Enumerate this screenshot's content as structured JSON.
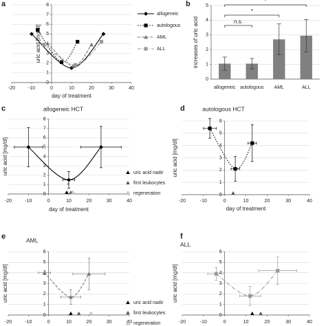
{
  "chart_data": [
    {
      "type": "line",
      "label": "a",
      "xlabel": "day of treatment",
      "ylabel": "uric acid [mg/dl]",
      "xlim": [
        -20,
        40
      ],
      "xticks": [
        -20,
        -10,
        0,
        10,
        20,
        30,
        40
      ],
      "ylim": [
        0,
        8
      ],
      "yticks": [
        0,
        1,
        2,
        3,
        4,
        5,
        6,
        7,
        8
      ],
      "grid": true,
      "legend": "right",
      "series": [
        {
          "name": "allogeneic",
          "color": "#000000",
          "line_style": "solid",
          "marker": "diamond",
          "x": [
            -10,
            10,
            26
          ],
          "values": [
            5,
            1.5,
            5
          ]
        },
        {
          "name": "autologous",
          "color": "#000000",
          "line_style": "dotted",
          "marker": "square",
          "x": [
            -7,
            5,
            13
          ],
          "values": [
            5.4,
            2.1,
            4.2
          ]
        },
        {
          "name": "AML",
          "color": "#777777",
          "line_style": "dashed",
          "marker": "triangle",
          "x": [
            -2,
            11,
            20
          ],
          "values": [
            4.0,
            1.7,
            3.9
          ]
        },
        {
          "name": "ALL",
          "color": "#999999",
          "line_style": "dashdot",
          "marker": "square",
          "x": [
            -4,
            12,
            25
          ],
          "values": [
            3.9,
            1.8,
            4.2
          ]
        }
      ]
    },
    {
      "type": "bar",
      "label": "b",
      "ylabel": "increases of uric acid",
      "categories": [
        "allogeneic",
        "autologous",
        "AML",
        "ALL"
      ],
      "values": [
        1.05,
        1.05,
        2.7,
        2.95
      ],
      "errors": [
        0.45,
        0.35,
        1.05,
        1.1
      ],
      "color": "#808080",
      "ylim": [
        0,
        5
      ],
      "yticks": [
        0,
        1,
        2,
        3,
        4,
        5
      ],
      "grid": true,
      "annotations": [
        {
          "text": "n.s.",
          "from": "allogeneic",
          "to": "autologous"
        },
        {
          "text": "*",
          "from": "allogeneic",
          "to": "AML"
        },
        {
          "text": "*",
          "from": "allogeneic",
          "to": "ALL"
        }
      ]
    },
    {
      "type": "line",
      "label": "c",
      "title": "allogeneic HCT",
      "xlabel": "day of treatment",
      "ylabel": "uric acid [mg/dl]",
      "xlim": [
        -20,
        40
      ],
      "xticks": [
        -20,
        -10,
        0,
        10,
        20,
        30,
        40
      ],
      "ylim": [
        0,
        8
      ],
      "yticks": [
        0,
        1,
        2,
        3,
        4,
        5,
        6,
        7,
        8
      ],
      "grid": true,
      "legend": "right",
      "series": [
        {
          "color": "#000000",
          "line_style": "solid",
          "marker": "diamond",
          "x": [
            -10,
            10,
            26
          ],
          "values": [
            5,
            1.5,
            5
          ],
          "xerr": [
            7,
            3,
            10
          ],
          "yerr": [
            2.1,
            0.9,
            2.2
          ]
        }
      ],
      "events": [
        {
          "name": "uric acid nadir",
          "x": 9,
          "color": "#000000"
        },
        {
          "name": "first leukocytes",
          "x": 11,
          "color": "#555555"
        },
        {
          "name": "regeneration",
          "x": 12,
          "color": "#cccccc"
        }
      ],
      "annotations": [
        {
          "text": "*"
        }
      ]
    },
    {
      "type": "line",
      "label": "d",
      "title": "autologous HCT",
      "xlabel": "day of treatment",
      "ylabel": "uric acid [mg/dl]",
      "xlim": [
        -20,
        40
      ],
      "xticks": [
        -20,
        -10,
        0,
        10,
        20,
        30,
        40
      ],
      "ylim": [
        0,
        6
      ],
      "yticks": [
        0,
        1,
        2,
        3,
        4,
        5,
        6
      ],
      "grid": true,
      "series": [
        {
          "color": "#000000",
          "line_style": "dotted",
          "marker": "square",
          "x": [
            -7,
            5,
            13
          ],
          "values": [
            5.4,
            2.1,
            4.2
          ],
          "xerr": [
            3,
            2,
            2
          ],
          "yerr": [
            0.8,
            1.0,
            1.5
          ]
        }
      ],
      "events": [
        {
          "x": 4,
          "color": "#555555"
        }
      ]
    },
    {
      "type": "line",
      "label": "e",
      "title": "AML",
      "ylabel": "uric acid [mg/dl]",
      "xlim": [
        -20,
        40
      ],
      "xticks": [
        -20,
        -10,
        0,
        10,
        20,
        30,
        40
      ],
      "ylim": [
        0,
        6
      ],
      "yticks": [
        0,
        1,
        2,
        3,
        4,
        5,
        6
      ],
      "grid": true,
      "legend": "right",
      "series": [
        {
          "color": "#777777",
          "line_style": "dashed",
          "marker": "triangle",
          "x": [
            -2,
            11,
            20
          ],
          "values": [
            4.0,
            1.7,
            3.9
          ],
          "xerr": [
            3,
            5,
            8
          ],
          "yerr": [
            0.2,
            0.7,
            1.5
          ]
        }
      ],
      "events": [
        {
          "name": "uric acid nadir",
          "x": 11,
          "color": "#000000"
        },
        {
          "name": "first leukocytes",
          "x": 15,
          "color": "#555555"
        },
        {
          "name": "regeneration",
          "x": 21,
          "color": "#cccccc"
        }
      ]
    },
    {
      "type": "line",
      "label": "f",
      "title": "ALL",
      "ylabel": "uric acid [mg/dl]",
      "xlim": [
        -20,
        40
      ],
      "xticks": [
        -20,
        -10,
        0,
        10,
        20,
        30,
        40
      ],
      "ylim": [
        0,
        6
      ],
      "yticks": [
        0,
        1,
        2,
        3,
        4,
        5,
        6
      ],
      "grid": true,
      "series": [
        {
          "color": "#999999",
          "line_style": "dashdot",
          "marker": "square",
          "x": [
            -4,
            12,
            25
          ],
          "values": [
            3.9,
            1.8,
            4.2
          ],
          "xerr": [
            4,
            5,
            9
          ],
          "yerr": [
            0.6,
            0.9,
            1.3
          ]
        }
      ],
      "events": [
        {
          "x": 13,
          "color": "#000000"
        },
        {
          "x": 17,
          "color": "#555555"
        }
      ]
    }
  ]
}
